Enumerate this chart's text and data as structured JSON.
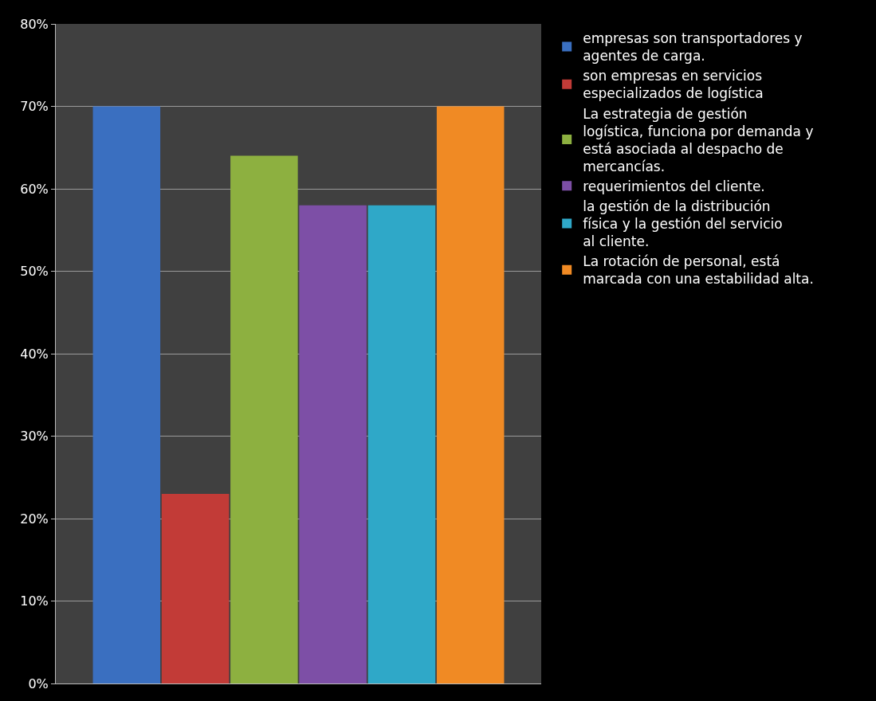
{
  "chart_data": {
    "type": "bar",
    "categories": [
      null
    ],
    "series": [
      {
        "name": "empresas son transportadores y agentes de carga.",
        "color": "#3a6fc0",
        "values": [
          70
        ]
      },
      {
        "name": "son empresas en servicios especializados de logística",
        "color": "#c23b37",
        "values": [
          23
        ]
      },
      {
        "name": "La estrategia de gestión logística, funciona por demanda y está asociada al despacho de mercancías.",
        "color": "#8db040",
        "values": [
          64
        ]
      },
      {
        "name": "requerimientos del cliente.",
        "color": "#7d4fa6",
        "values": [
          58
        ]
      },
      {
        "name": "la gestión de la distribución física y la gestión del servicio al cliente.",
        "color": "#2fa8c8",
        "values": [
          58
        ]
      },
      {
        "name": "La rotación de personal, está marcada con una estabilidad alta.",
        "color": "#f08a24",
        "values": [
          70
        ]
      }
    ],
    "ylim": [
      0,
      80
    ],
    "yticks": [
      {
        "value": 0,
        "label": "0%"
      },
      {
        "value": 10,
        "label": "10%"
      },
      {
        "value": 20,
        "label": "20%"
      },
      {
        "value": 30,
        "label": "30%"
      },
      {
        "value": 40,
        "label": "40%"
      },
      {
        "value": 50,
        "label": "50%"
      },
      {
        "value": 60,
        "label": "60%"
      },
      {
        "value": 70,
        "label": "70%"
      },
      {
        "value": 80,
        "label": "80%"
      }
    ],
    "grid": "y",
    "legend": "right"
  }
}
